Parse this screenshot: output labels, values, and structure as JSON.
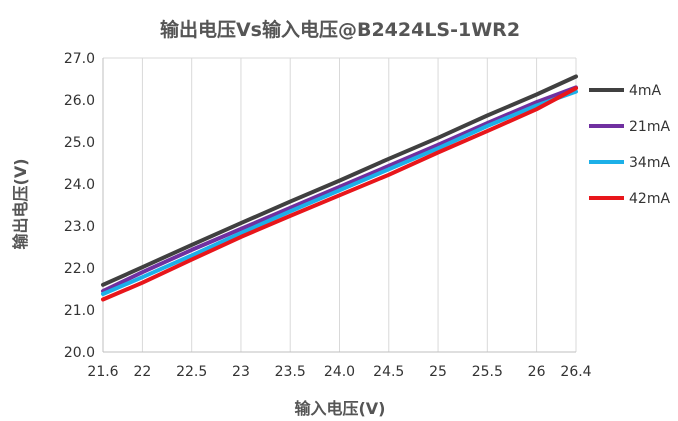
{
  "chart_data": {
    "type": "line",
    "title": "输出电压Vs输入电压@B2424LS-1WR2",
    "xlabel": "输入电压(V)",
    "ylabel": "输出电压(V)",
    "x": [
      21.6,
      22,
      22.5,
      23,
      23.5,
      24,
      24.5,
      25,
      25.5,
      26,
      26.4
    ],
    "x_tick_labels": [
      "21.6",
      "22",
      "22.5",
      "23",
      "23.5",
      "24.0",
      "24.5",
      "25",
      "25.5",
      "26",
      "26.4"
    ],
    "xlim": [
      21.6,
      26.4
    ],
    "ylim": [
      20.0,
      27.0
    ],
    "y_tick_labels": [
      "20.0",
      "21.0",
      "22.0",
      "23.0",
      "24.0",
      "25.0",
      "26.0",
      "27.0"
    ],
    "y_ticks": [
      20,
      21,
      22,
      23,
      24,
      25,
      26,
      27
    ],
    "grid": "vertical",
    "legend_position": "right",
    "series": [
      {
        "name": "4mA",
        "color": "#404040",
        "values": [
          21.6,
          22.02,
          22.55,
          23.07,
          23.58,
          24.08,
          24.6,
          25.1,
          25.63,
          26.13,
          26.56
        ]
      },
      {
        "name": "21mA",
        "color": "#7030A0",
        "values": [
          21.45,
          21.9,
          22.43,
          22.93,
          23.43,
          23.93,
          24.43,
          24.93,
          25.45,
          25.95,
          26.3
        ]
      },
      {
        "name": "34mA",
        "color": "#1CB0E8",
        "values": [
          21.38,
          21.78,
          22.3,
          22.83,
          23.35,
          23.85,
          24.35,
          24.85,
          25.38,
          25.87,
          26.2
        ]
      },
      {
        "name": "42mA",
        "color": "#E8161B",
        "values": [
          21.25,
          21.65,
          22.2,
          22.74,
          23.24,
          23.73,
          24.22,
          24.75,
          25.26,
          25.78,
          26.28
        ]
      }
    ]
  }
}
